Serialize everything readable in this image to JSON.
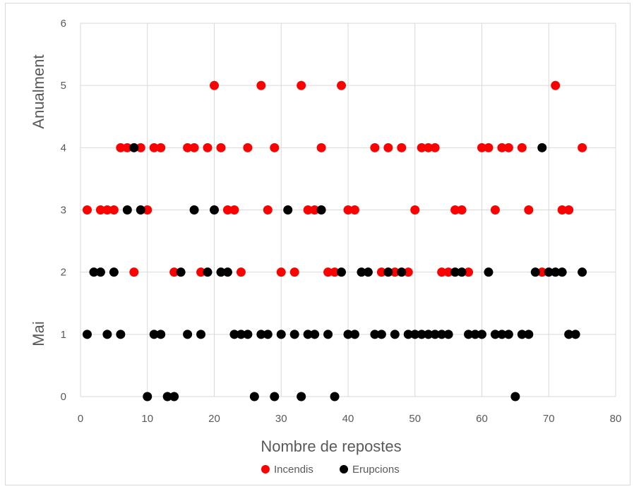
{
  "chart_data": {
    "type": "scatter",
    "title": "",
    "xlabel": "Nombre de repostes",
    "ylabel_top": "Anualment",
    "ylabel_bottom": "Mai",
    "xlim": [
      0,
      80
    ],
    "ylim": [
      0,
      6
    ],
    "x_ticks": [
      0,
      10,
      20,
      30,
      40,
      50,
      60,
      70,
      80
    ],
    "y_ticks": [
      0,
      1,
      2,
      3,
      4,
      5,
      6
    ],
    "grid": true,
    "legend_position": "bottom",
    "series": [
      {
        "name": "Incendis",
        "color": "#ff0000",
        "points": [
          [
            1,
            3
          ],
          [
            3,
            3
          ],
          [
            4,
            3
          ],
          [
            5,
            3
          ],
          [
            6,
            4
          ],
          [
            7,
            4
          ],
          [
            8,
            2
          ],
          [
            9,
            4
          ],
          [
            10,
            3
          ],
          [
            11,
            4
          ],
          [
            12,
            4
          ],
          [
            14,
            2
          ],
          [
            16,
            4
          ],
          [
            17,
            4
          ],
          [
            18,
            2
          ],
          [
            19,
            4
          ],
          [
            20,
            5
          ],
          [
            21,
            4
          ],
          [
            22,
            3
          ],
          [
            23,
            3
          ],
          [
            24,
            2
          ],
          [
            25,
            4
          ],
          [
            27,
            5
          ],
          [
            28,
            3
          ],
          [
            29,
            4
          ],
          [
            30,
            2
          ],
          [
            32,
            2
          ],
          [
            33,
            5
          ],
          [
            34,
            3
          ],
          [
            35,
            3
          ],
          [
            36,
            4
          ],
          [
            37,
            2
          ],
          [
            38,
            2
          ],
          [
            39,
            5
          ],
          [
            40,
            3
          ],
          [
            41,
            3
          ],
          [
            44,
            4
          ],
          [
            45,
            2
          ],
          [
            46,
            4
          ],
          [
            47,
            2
          ],
          [
            48,
            4
          ],
          [
            49,
            2
          ],
          [
            50,
            3
          ],
          [
            51,
            4
          ],
          [
            52,
            4
          ],
          [
            53,
            4
          ],
          [
            54,
            2
          ],
          [
            55,
            2
          ],
          [
            56,
            3
          ],
          [
            57,
            3
          ],
          [
            58,
            2
          ],
          [
            60,
            4
          ],
          [
            61,
            4
          ],
          [
            62,
            3
          ],
          [
            63,
            4
          ],
          [
            64,
            4
          ],
          [
            66,
            4
          ],
          [
            67,
            3
          ],
          [
            69,
            2
          ],
          [
            71,
            5
          ],
          [
            72,
            3
          ],
          [
            73,
            3
          ],
          [
            75,
            4
          ]
        ]
      },
      {
        "name": "Erupcions",
        "color": "#000000",
        "points": [
          [
            1,
            1
          ],
          [
            2,
            2
          ],
          [
            3,
            2
          ],
          [
            4,
            1
          ],
          [
            5,
            2
          ],
          [
            6,
            1
          ],
          [
            7,
            3
          ],
          [
            8,
            4
          ],
          [
            9,
            3
          ],
          [
            10,
            0
          ],
          [
            11,
            1
          ],
          [
            12,
            1
          ],
          [
            13,
            0
          ],
          [
            14,
            0
          ],
          [
            15,
            2
          ],
          [
            16,
            1
          ],
          [
            17,
            3
          ],
          [
            18,
            1
          ],
          [
            19,
            2
          ],
          [
            20,
            3
          ],
          [
            21,
            2
          ],
          [
            22,
            2
          ],
          [
            23,
            1
          ],
          [
            24,
            1
          ],
          [
            25,
            1
          ],
          [
            26,
            0
          ],
          [
            27,
            1
          ],
          [
            28,
            1
          ],
          [
            29,
            0
          ],
          [
            30,
            1
          ],
          [
            31,
            3
          ],
          [
            32,
            1
          ],
          [
            33,
            0
          ],
          [
            34,
            1
          ],
          [
            35,
            1
          ],
          [
            36,
            3
          ],
          [
            37,
            1
          ],
          [
            38,
            0
          ],
          [
            39,
            2
          ],
          [
            40,
            1
          ],
          [
            41,
            1
          ],
          [
            42,
            2
          ],
          [
            43,
            2
          ],
          [
            44,
            1
          ],
          [
            45,
            1
          ],
          [
            46,
            2
          ],
          [
            47,
            1
          ],
          [
            48,
            2
          ],
          [
            49,
            1
          ],
          [
            50,
            1
          ],
          [
            51,
            1
          ],
          [
            52,
            1
          ],
          [
            53,
            1
          ],
          [
            54,
            1
          ],
          [
            55,
            1
          ],
          [
            56,
            2
          ],
          [
            57,
            2
          ],
          [
            58,
            1
          ],
          [
            59,
            1
          ],
          [
            60,
            1
          ],
          [
            61,
            2
          ],
          [
            62,
            1
          ],
          [
            63,
            1
          ],
          [
            64,
            1
          ],
          [
            65,
            0
          ],
          [
            66,
            1
          ],
          [
            67,
            1
          ],
          [
            68,
            2
          ],
          [
            69,
            4
          ],
          [
            70,
            2
          ],
          [
            71,
            2
          ],
          [
            72,
            2
          ],
          [
            73,
            1
          ],
          [
            74,
            1
          ],
          [
            75,
            2
          ]
        ]
      }
    ]
  }
}
